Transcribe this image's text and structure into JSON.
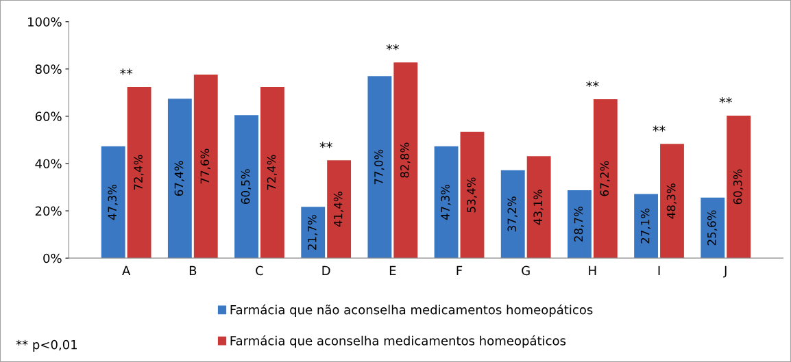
{
  "chart_data": {
    "type": "bar",
    "categories": [
      "A",
      "B",
      "C",
      "D",
      "E",
      "F",
      "G",
      "H",
      "I",
      "J"
    ],
    "series": [
      {
        "name": "Farmácia que não aconselha medicamentos homeopáticos",
        "color": "#3b78c3",
        "values": [
          47.3,
          67.4,
          60.5,
          21.7,
          77.0,
          47.3,
          37.2,
          28.7,
          27.1,
          25.6
        ],
        "value_labels": [
          "47,3%",
          "67,4%",
          "60,5%",
          "21,7%",
          "77,0%",
          "47,3%",
          "37,2%",
          "28,7%",
          "27,1%",
          "25,6%"
        ]
      },
      {
        "name": "Farmácia que aconselha medicamentos homeopáticos",
        "color": "#c83937",
        "values": [
          72.4,
          77.6,
          72.4,
          41.4,
          82.8,
          53.4,
          43.1,
          67.2,
          48.3,
          60.3
        ],
        "value_labels": [
          "72,4%",
          "77,6%",
          "72,4%",
          "41,4%",
          "82,8%",
          "53,4%",
          "43,1%",
          "67,2%",
          "48,3%",
          "60,3%"
        ]
      }
    ],
    "ylim": [
      0,
      100
    ],
    "yticks": [
      {
        "value": 0,
        "label": "0%"
      },
      {
        "value": 20,
        "label": "20%"
      },
      {
        "value": 40,
        "label": "40%"
      },
      {
        "value": 60,
        "label": "60%"
      },
      {
        "value": 80,
        "label": "80%"
      },
      {
        "value": 100,
        "label": "100%"
      }
    ],
    "grid": false,
    "legend": "bottom",
    "annotations": [
      {
        "text": "**",
        "x": "A",
        "y": 72.4
      },
      {
        "text": "**",
        "x": "D",
        "y": 41.4
      },
      {
        "text": "**",
        "x": "E",
        "y": 82.8
      },
      {
        "text": "**",
        "x": "H",
        "y": 67.2
      },
      {
        "text": "**",
        "x": "I",
        "y": 48.3
      },
      {
        "text": "**",
        "x": "J",
        "y": 60.3
      },
      "** p<0,01"
    ]
  }
}
